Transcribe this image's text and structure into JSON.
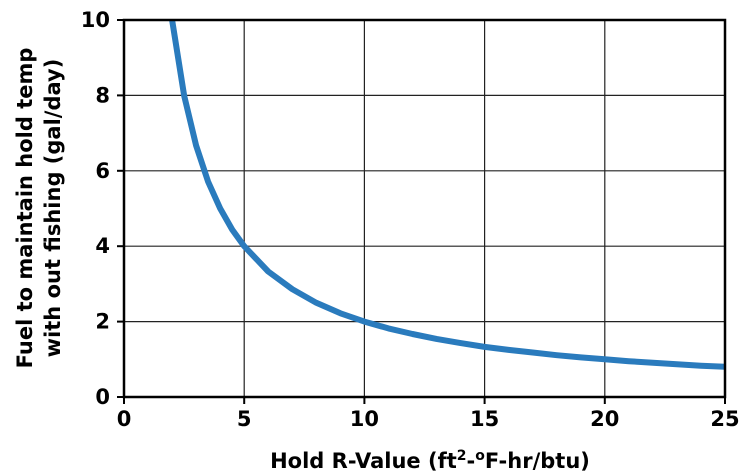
{
  "chart_data": {
    "type": "line",
    "title": "",
    "xlabel": {
      "main": "Hold R-Value (ft",
      "sup1": "2",
      "mid": "-",
      "sup2": "o",
      "end": "F-hr/btu)"
    },
    "ylabel": {
      "line1": "Fuel to maintain hold temp",
      "line2": "with out fishing (gal/day)"
    },
    "xlim": [
      0,
      25
    ],
    "ylim": [
      0,
      10
    ],
    "xticks": [
      "0",
      "5",
      "10",
      "15",
      "20",
      "25"
    ],
    "yticks": [
      "0",
      "2",
      "4",
      "6",
      "8",
      "10"
    ],
    "grid": true,
    "series": [
      {
        "color": "#2a7bbd",
        "x": [
          2,
          2.5,
          3,
          3.5,
          4,
          4.5,
          5,
          6,
          7,
          8,
          9,
          10,
          11,
          12,
          13,
          14,
          15,
          16,
          17,
          18,
          19,
          20,
          21,
          22,
          23,
          24,
          25
        ],
        "y": [
          10,
          8,
          6.67,
          5.71,
          5,
          4.44,
          4,
          3.33,
          2.86,
          2.5,
          2.22,
          2,
          1.82,
          1.67,
          1.54,
          1.43,
          1.33,
          1.25,
          1.18,
          1.11,
          1.05,
          1,
          0.95,
          0.91,
          0.87,
          0.83,
          0.8
        ]
      }
    ]
  }
}
